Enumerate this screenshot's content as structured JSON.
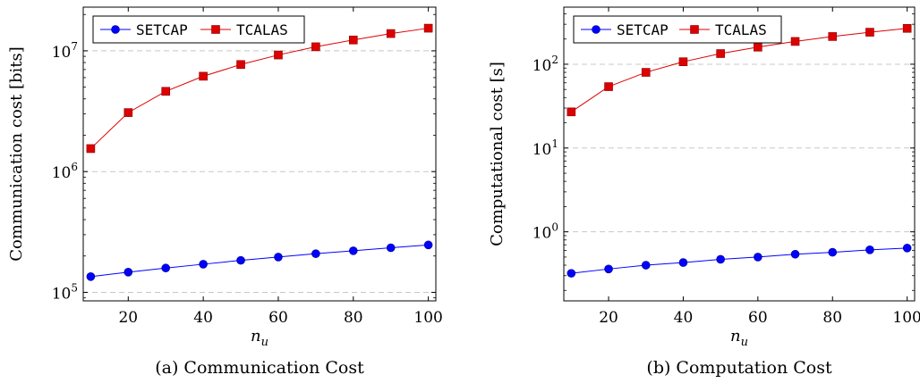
{
  "chart_data": [
    {
      "type": "line",
      "caption": "(a)  Communication Cost",
      "xlabel": "n_u",
      "ylabel": "Communication cost [bits]",
      "x": [
        10,
        20,
        30,
        40,
        50,
        60,
        70,
        80,
        90,
        100
      ],
      "x_ticks": [
        20,
        40,
        60,
        80,
        100
      ],
      "xlim": [
        8,
        102
      ],
      "yscale": "log",
      "ylim": [
        85000,
        23000000
      ],
      "y_ticks": [
        100000,
        1000000,
        10000000
      ],
      "y_tick_labels": [
        {
          "base": "10",
          "exp": "5"
        },
        {
          "base": "10",
          "exp": "6"
        },
        {
          "base": "10",
          "exp": "7"
        }
      ],
      "grid": "y-major-dashed",
      "legend": "top-left",
      "series": [
        {
          "name": "SETCAP",
          "color": "#0000ff",
          "marker": "circle",
          "values": [
            135000,
            147000,
            159000,
            171000,
            184000,
            196000,
            209000,
            221000,
            234000,
            247000
          ]
        },
        {
          "name": "TCALAS",
          "color": "#dd0000",
          "marker": "square",
          "values": [
            1550000,
            3080000,
            4620000,
            6160000,
            7700000,
            9240000,
            10800000,
            12300000,
            13900000,
            15400000
          ]
        }
      ]
    },
    {
      "type": "line",
      "caption": "(b)  Computation Cost",
      "xlabel": "n_u",
      "ylabel": "Computational cost [s]",
      "x": [
        10,
        20,
        30,
        40,
        50,
        60,
        70,
        80,
        90,
        100
      ],
      "x_ticks": [
        20,
        40,
        60,
        80,
        100
      ],
      "xlim": [
        8,
        102
      ],
      "yscale": "log",
      "ylim": [
        0.15,
        480
      ],
      "y_ticks": [
        1,
        10,
        100
      ],
      "y_tick_labels": [
        {
          "base": "10",
          "exp": "0"
        },
        {
          "base": "10",
          "exp": "1"
        },
        {
          "base": "10",
          "exp": "2"
        }
      ],
      "grid": "y-major-dashed",
      "legend": "top-left",
      "series": [
        {
          "name": "SETCAP",
          "color": "#0000ff",
          "marker": "circle",
          "values": [
            0.32,
            0.36,
            0.4,
            0.43,
            0.47,
            0.5,
            0.54,
            0.57,
            0.61,
            0.64
          ]
        },
        {
          "name": "TCALAS",
          "color": "#dd0000",
          "marker": "square",
          "values": [
            27,
            54,
            80,
            107,
            134,
            160,
            187,
            214,
            241,
            268
          ]
        }
      ]
    }
  ]
}
